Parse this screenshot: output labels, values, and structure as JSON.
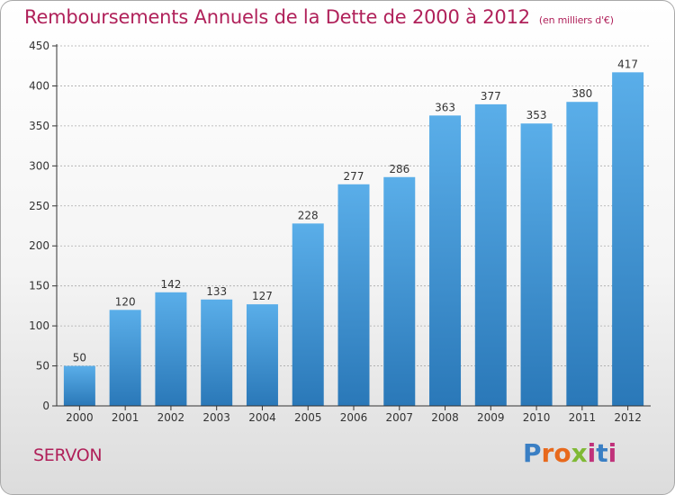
{
  "header": {
    "title": "Remboursements Annuels de la Dette de 2000 à 2012",
    "unit": "(en milliers d'€)"
  },
  "footer": {
    "commune": "SERVON",
    "logo_text": "Proxiti"
  },
  "colors": {
    "title": "#b0215a",
    "bar_top": "#5aaee9",
    "bar_bottom": "#2a78b8",
    "axis": "#333333",
    "grid": "#aaaaaa"
  },
  "chart_data": {
    "type": "bar",
    "title": "Remboursements Annuels de la Dette de 2000 à 2012",
    "xlabel": "",
    "ylabel": "",
    "categories": [
      "2000",
      "2001",
      "2002",
      "2003",
      "2004",
      "2005",
      "2006",
      "2007",
      "2008",
      "2009",
      "2010",
      "2011",
      "2012"
    ],
    "values": [
      50,
      120,
      142,
      133,
      127,
      228,
      277,
      286,
      363,
      377,
      353,
      380,
      417
    ],
    "ylim": [
      0,
      450
    ],
    "yticks": [
      0,
      50,
      100,
      150,
      200,
      250,
      300,
      350,
      400,
      450
    ],
    "grid": true,
    "legend": "none"
  }
}
